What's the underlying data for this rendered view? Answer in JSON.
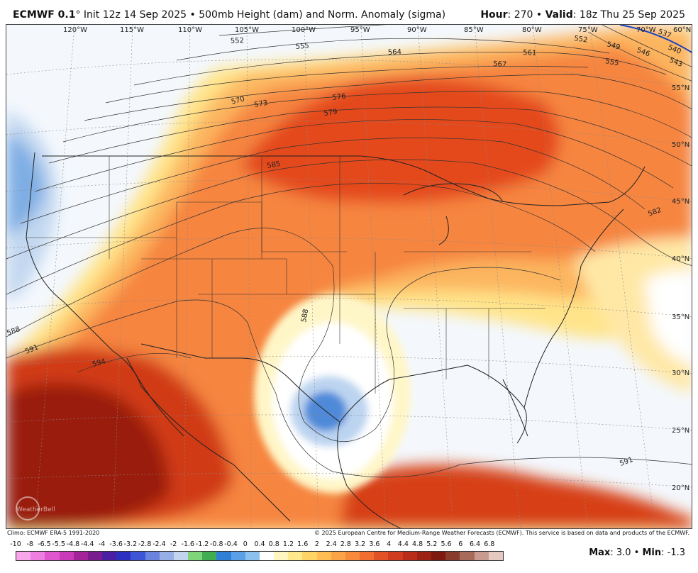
{
  "header": {
    "model": "ECMWF 0.1",
    "degree": "°",
    "init": " Init 12z 14 Sep 2025 • 500mb Height (dam) and Norm. Anomaly (sigma)",
    "hour_label": "Hour",
    "hour_value": ": 270 • ",
    "valid_label": "Valid",
    "valid_value": ": 18z Thu 25 Sep 2025"
  },
  "map": {
    "lon_labels": [
      "120°W",
      "115°W",
      "110°W",
      "105°W",
      "100°W",
      "95°W",
      "90°W",
      "85°W",
      "80°W",
      "75°W",
      "70°W",
      "60°N"
    ],
    "lat_labels": [
      "55°N",
      "50°N",
      "45°N",
      "40°N",
      "35°N",
      "30°N",
      "25°N",
      "20°N"
    ],
    "contour_labels": [
      "552",
      "555",
      "564",
      "561",
      "567",
      "552",
      "549",
      "546",
      "543",
      "537",
      "540",
      "555",
      "570",
      "573",
      "576",
      "579",
      "585",
      "588",
      "591",
      "594",
      "588",
      "591",
      "582"
    ],
    "watermark": "WeatherBell",
    "colors": {
      "ocean": "#f2f7fc",
      "neg_light": "#c8daf2",
      "neg_mid": "#7fb0e6",
      "neg_strong": "#3f7fd6",
      "neutral": "#ffffff",
      "pos_yellow": "#fff3b0",
      "pos_gold": "#ffd27a",
      "pos_orange": "#fbae5c",
      "pos_deep": "#f5783a",
      "pos_red": "#e84f1f",
      "pos_darkred": "#c2310f",
      "pos_maroon": "#8b1a0a"
    }
  },
  "footer": {
    "climo": "Climo: ECMWF ERA-5 1991-2020",
    "copyright": "© 2025 European Centre for Medium-Range Weather Forecasts (ECMWF). This service is based on data and products of the ECMWF."
  },
  "legend": {
    "labels": [
      "-10",
      "-8",
      "-6.5",
      "-5.5",
      "-4.8",
      "-4.4",
      "-4",
      "-3.6",
      "-3.2",
      "-2.8",
      "-2.4",
      "-2",
      "-1.6",
      "-1.2",
      "-0.8",
      "-0.4",
      "0",
      "0.4",
      "0.8",
      "1.2",
      "1.6",
      "2",
      "2.4",
      "2.8",
      "3.2",
      "3.6",
      "4",
      "4.4",
      "4.8",
      "5.2",
      "5.6",
      "6",
      "6.4",
      "6.8"
    ],
    "colors": [
      "#f7a6ea",
      "#ee7fe0",
      "#e056cf",
      "#c93bb8",
      "#a52398",
      "#7a1b8f",
      "#4b1fa3",
      "#2c2fc0",
      "#3c56d6",
      "#6a83df",
      "#97aee6",
      "#c3d4ef",
      "#7fd67a",
      "#3fae52",
      "#2f7fd6",
      "#5aa0e6",
      "#8cc0ee",
      "#ffffff",
      "#fff6c0",
      "#ffe98c",
      "#ffd466",
      "#ffbd52",
      "#fba347",
      "#f88a3c",
      "#f16d30",
      "#e25227",
      "#cf3c1f",
      "#b82c18",
      "#9c2213",
      "#7e1a0f",
      "#8a3c2c",
      "#a86a5a",
      "#c79c8f",
      "#e4c9c1"
    ],
    "max_label": "Max",
    "max_value": ": 3.0 • ",
    "min_label": "Min",
    "min_value": ": -1.3"
  }
}
